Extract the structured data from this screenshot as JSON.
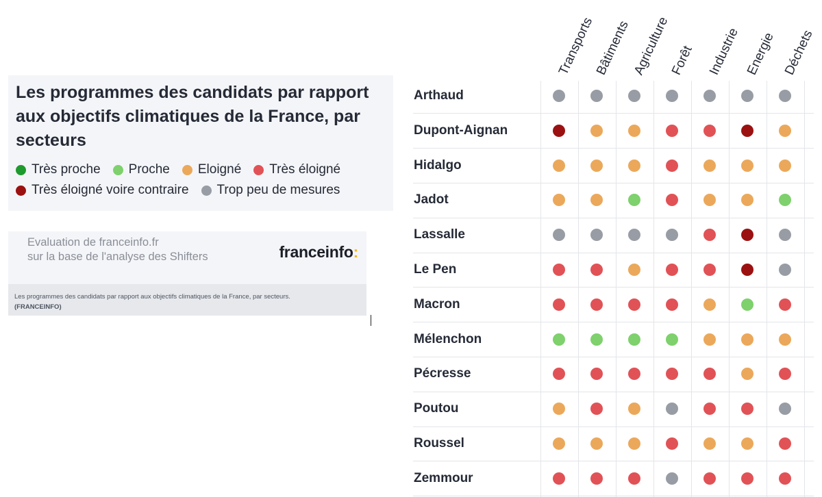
{
  "legend": {
    "title": "Les programmes des candidats par rapport aux objectifs climatiques de la France, par secteurs",
    "items": [
      {
        "label": "Très proche",
        "color": "#1f9a2e"
      },
      {
        "label": "Proche",
        "color": "#7ed16c"
      },
      {
        "label": "Eloigné",
        "color": "#eba85a"
      },
      {
        "label": "Très éloigné",
        "color": "#e15256"
      },
      {
        "label": "Très éloigné voire contraire",
        "color": "#9b1111"
      },
      {
        "label": "Trop peu de mesures",
        "color": "#989ca4"
      }
    ]
  },
  "source": {
    "line1": "Evaluation de franceinfo.fr",
    "line2": "sur la base de l'analyse des Shifters",
    "brand": "franceinfo",
    "brand_colon": ":"
  },
  "caption": {
    "text": "Les programmes des candidats par rapport aux objectifs climatiques de la France, par secteurs.",
    "credit": "(FRANCEINFO)"
  },
  "chart_data": {
    "type": "table",
    "columns": [
      "Transports",
      "Bâtiments",
      "Agriculture",
      "Forêt",
      "Industrie",
      "Energie",
      "Déchets"
    ],
    "rows": [
      {
        "name": "Arthaud",
        "values": [
          "Trop peu de mesures",
          "Trop peu de mesures",
          "Trop peu de mesures",
          "Trop peu de mesures",
          "Trop peu de mesures",
          "Trop peu de mesures",
          "Trop peu de mesures"
        ]
      },
      {
        "name": "Dupont-Aignan",
        "values": [
          "Très éloigné voire contraire",
          "Eloigné",
          "Eloigné",
          "Très éloigné",
          "Très éloigné",
          "Très éloigné voire contraire",
          "Eloigné"
        ]
      },
      {
        "name": "Hidalgo",
        "values": [
          "Eloigné",
          "Eloigné",
          "Eloigné",
          "Très éloigné",
          "Eloigné",
          "Eloigné",
          "Eloigné"
        ]
      },
      {
        "name": "Jadot",
        "values": [
          "Eloigné",
          "Eloigné",
          "Proche",
          "Très éloigné",
          "Eloigné",
          "Eloigné",
          "Proche"
        ]
      },
      {
        "name": "Lassalle",
        "values": [
          "Trop peu de mesures",
          "Trop peu de mesures",
          "Trop peu de mesures",
          "Trop peu de mesures",
          "Très éloigné",
          "Très éloigné voire contraire",
          "Trop peu de mesures"
        ]
      },
      {
        "name": "Le Pen",
        "values": [
          "Très éloigné",
          "Très éloigné",
          "Eloigné",
          "Très éloigné",
          "Très éloigné",
          "Très éloigné voire contraire",
          "Trop peu de mesures"
        ]
      },
      {
        "name": "Macron",
        "values": [
          "Très éloigné",
          "Très éloigné",
          "Très éloigné",
          "Très éloigné",
          "Eloigné",
          "Proche",
          "Très éloigné"
        ]
      },
      {
        "name": "Mélenchon",
        "values": [
          "Proche",
          "Proche",
          "Proche",
          "Proche",
          "Eloigné",
          "Eloigné",
          "Eloigné"
        ]
      },
      {
        "name": "Pécresse",
        "values": [
          "Très éloigné",
          "Très éloigné",
          "Très éloigné",
          "Très éloigné",
          "Très éloigné",
          "Eloigné",
          "Très éloigné"
        ]
      },
      {
        "name": "Poutou",
        "values": [
          "Eloigné",
          "Très éloigné",
          "Eloigné",
          "Trop peu de mesures",
          "Très éloigné",
          "Très éloigné",
          "Trop peu de mesures"
        ]
      },
      {
        "name": "Roussel",
        "values": [
          "Eloigné",
          "Eloigné",
          "Eloigné",
          "Très éloigné",
          "Eloigné",
          "Eloigné",
          "Très éloigné"
        ]
      },
      {
        "name": "Zemmour",
        "values": [
          "Très éloigné",
          "Très éloigné",
          "Très éloigné",
          "Trop peu de mesures",
          "Très éloigné",
          "Très éloigné",
          "Très éloigné"
        ]
      }
    ]
  }
}
